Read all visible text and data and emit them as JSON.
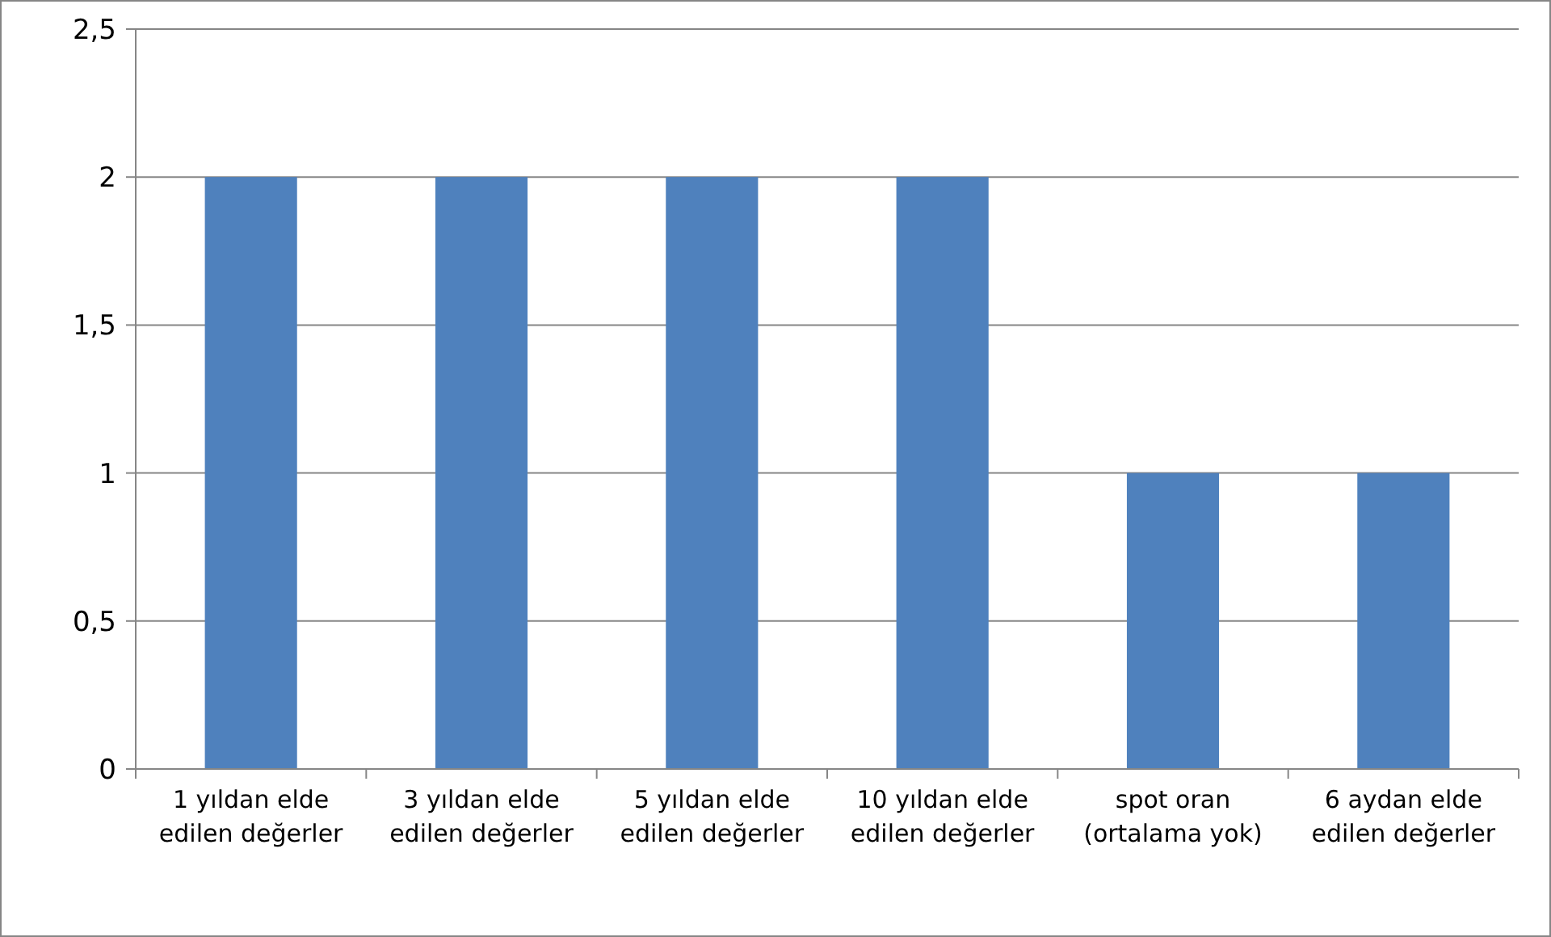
{
  "chart_data": {
    "type": "bar",
    "categories": [
      "1 yıldan elde edilen değerler",
      "3 yıldan elde edilen değerler",
      "5 yıldan elde edilen değerler",
      "10 yıldan elde edilen değerler",
      "spot oran (ortalama yok)",
      "6 aydan elde edilen değerler"
    ],
    "values": [
      2,
      2,
      2,
      2,
      1,
      1
    ],
    "color": "#4f81bd",
    "ylim": [
      0,
      2.5
    ],
    "yticks": [
      0,
      {
        "value": 0.5,
        "label": "0,5"
      },
      1,
      {
        "value": 1.5,
        "label": "1,5"
      },
      2,
      {
        "value": 2.5,
        "label": "2,5"
      }
    ],
    "grid": "y"
  }
}
